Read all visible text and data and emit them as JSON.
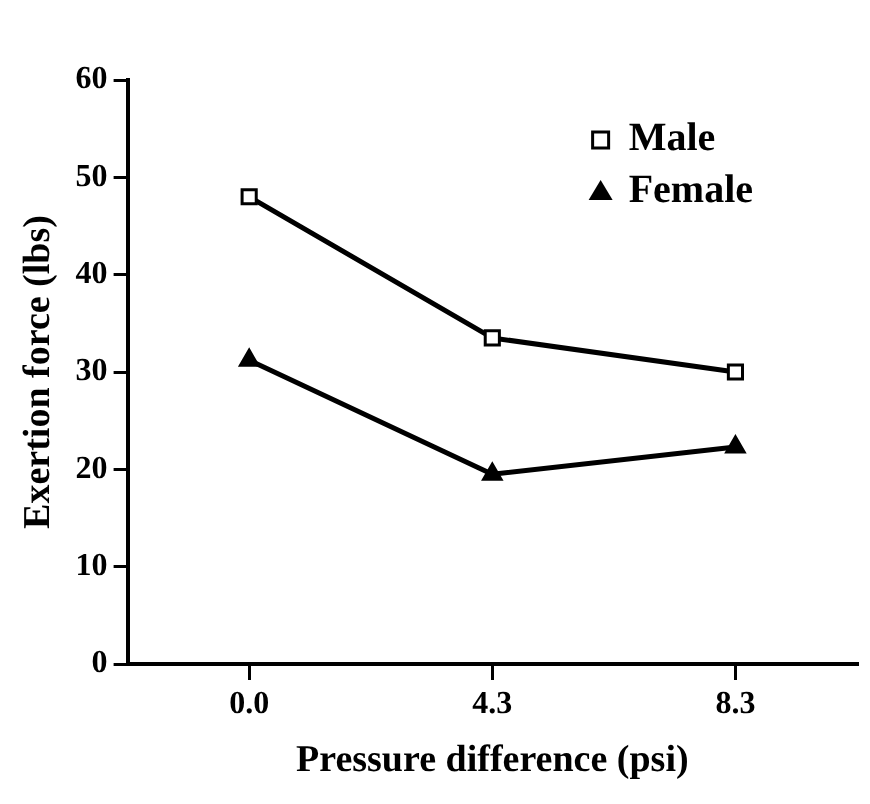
{
  "chart_data": {
    "type": "line",
    "xlabel": "Pressure difference (psi)",
    "ylabel": "Exertion force (lbs)",
    "categories": [
      "0.0",
      "4.3",
      "8.3"
    ],
    "series": [
      {
        "name": "Male",
        "color": "#000000",
        "marker": "square",
        "values": [
          48,
          33.5,
          30
        ]
      },
      {
        "name": "Female",
        "color": "#000000",
        "marker": "triangle",
        "values": [
          31.2,
          19.5,
          22.3
        ]
      }
    ],
    "ylim": [
      0,
      60
    ],
    "yticks": [
      0,
      10,
      20,
      30,
      40,
      50,
      60
    ],
    "grid": false,
    "legend": "top right",
    "line_style": "solid"
  }
}
